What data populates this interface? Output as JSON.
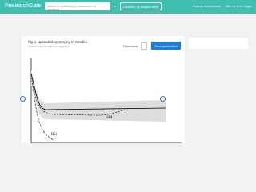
{
  "header": {
    "logo": "ResearchGate",
    "search_placeholder": "Search for publications, researchers, or questions",
    "or": "or",
    "discover": "Discover by subject area",
    "links": [
      "Recruit researchers",
      "Join for free",
      "Login"
    ]
  },
  "figure": {
    "title": "Fig 4. uploaded by Sergey V. Shedko",
    "subtitle": "Content may be subject to copyright.",
    "download": "Download",
    "view": "View publication",
    "labels": [
      "SM",
      "BG"
    ]
  }
}
